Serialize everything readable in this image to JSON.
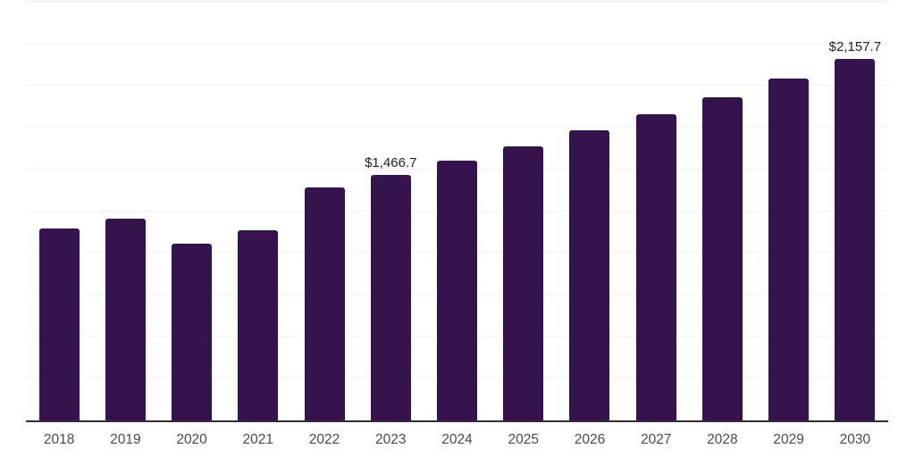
{
  "chart_data": {
    "type": "bar",
    "title": "",
    "xlabel": "",
    "ylabel": "",
    "categories": [
      "2018",
      "2019",
      "2020",
      "2021",
      "2022",
      "2023",
      "2024",
      "2025",
      "2026",
      "2027",
      "2028",
      "2029",
      "2030"
    ],
    "values": [
      1145,
      1205,
      1058,
      1134,
      1394,
      1466.7,
      1550,
      1638,
      1731,
      1829,
      1932,
      2042,
      2157.7
    ],
    "data_labels": [
      {
        "category_index": 5,
        "text": "$1,466.7"
      },
      {
        "category_index": 12,
        "text": "$2,157.7"
      }
    ],
    "ylim": [
      0,
      2500
    ],
    "gridline_interval": 250,
    "grid": "horizontal-only",
    "y_tick_labels_visible": false,
    "legend": "none",
    "colors": {
      "bar_fill": "#36124e",
      "axis_line": "#2f2f2f",
      "gridline": "#f2f2f2",
      "top_gridline": "#e5e5e5",
      "tick_label": "#4a4a4a",
      "data_label": "#1f1f1f",
      "background": "#ffffff"
    }
  }
}
